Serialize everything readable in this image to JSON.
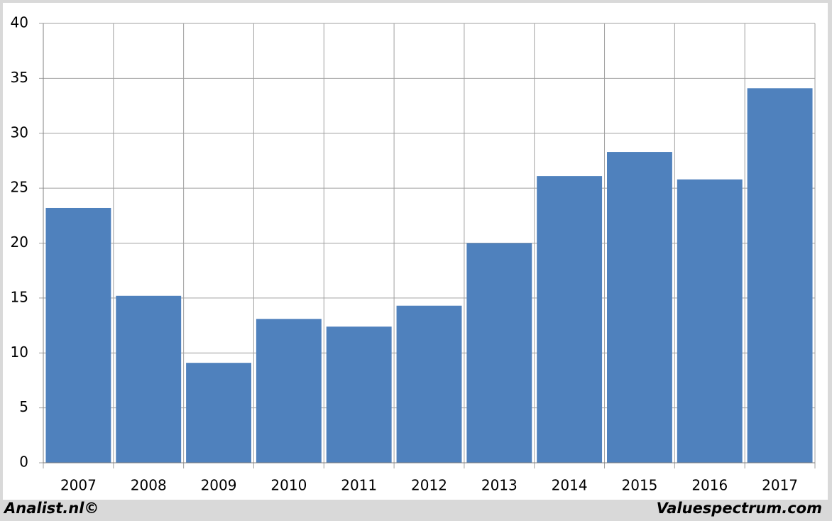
{
  "chart_data": {
    "type": "bar",
    "categories": [
      "2007",
      "2008",
      "2009",
      "2010",
      "2011",
      "2012",
      "2013",
      "2014",
      "2015",
      "2016",
      "2017"
    ],
    "values": [
      23.2,
      15.2,
      9.1,
      13.1,
      12.4,
      14.3,
      20.0,
      26.1,
      28.3,
      25.8,
      34.1
    ],
    "color": "#4f81bd",
    "ylim": [
      0,
      40
    ],
    "yticks": [
      0,
      5,
      10,
      15,
      20,
      25,
      30,
      35,
      40
    ],
    "grid": true
  },
  "footer": {
    "left": "Analist.nl©",
    "right": "Valuespectrum.com"
  }
}
